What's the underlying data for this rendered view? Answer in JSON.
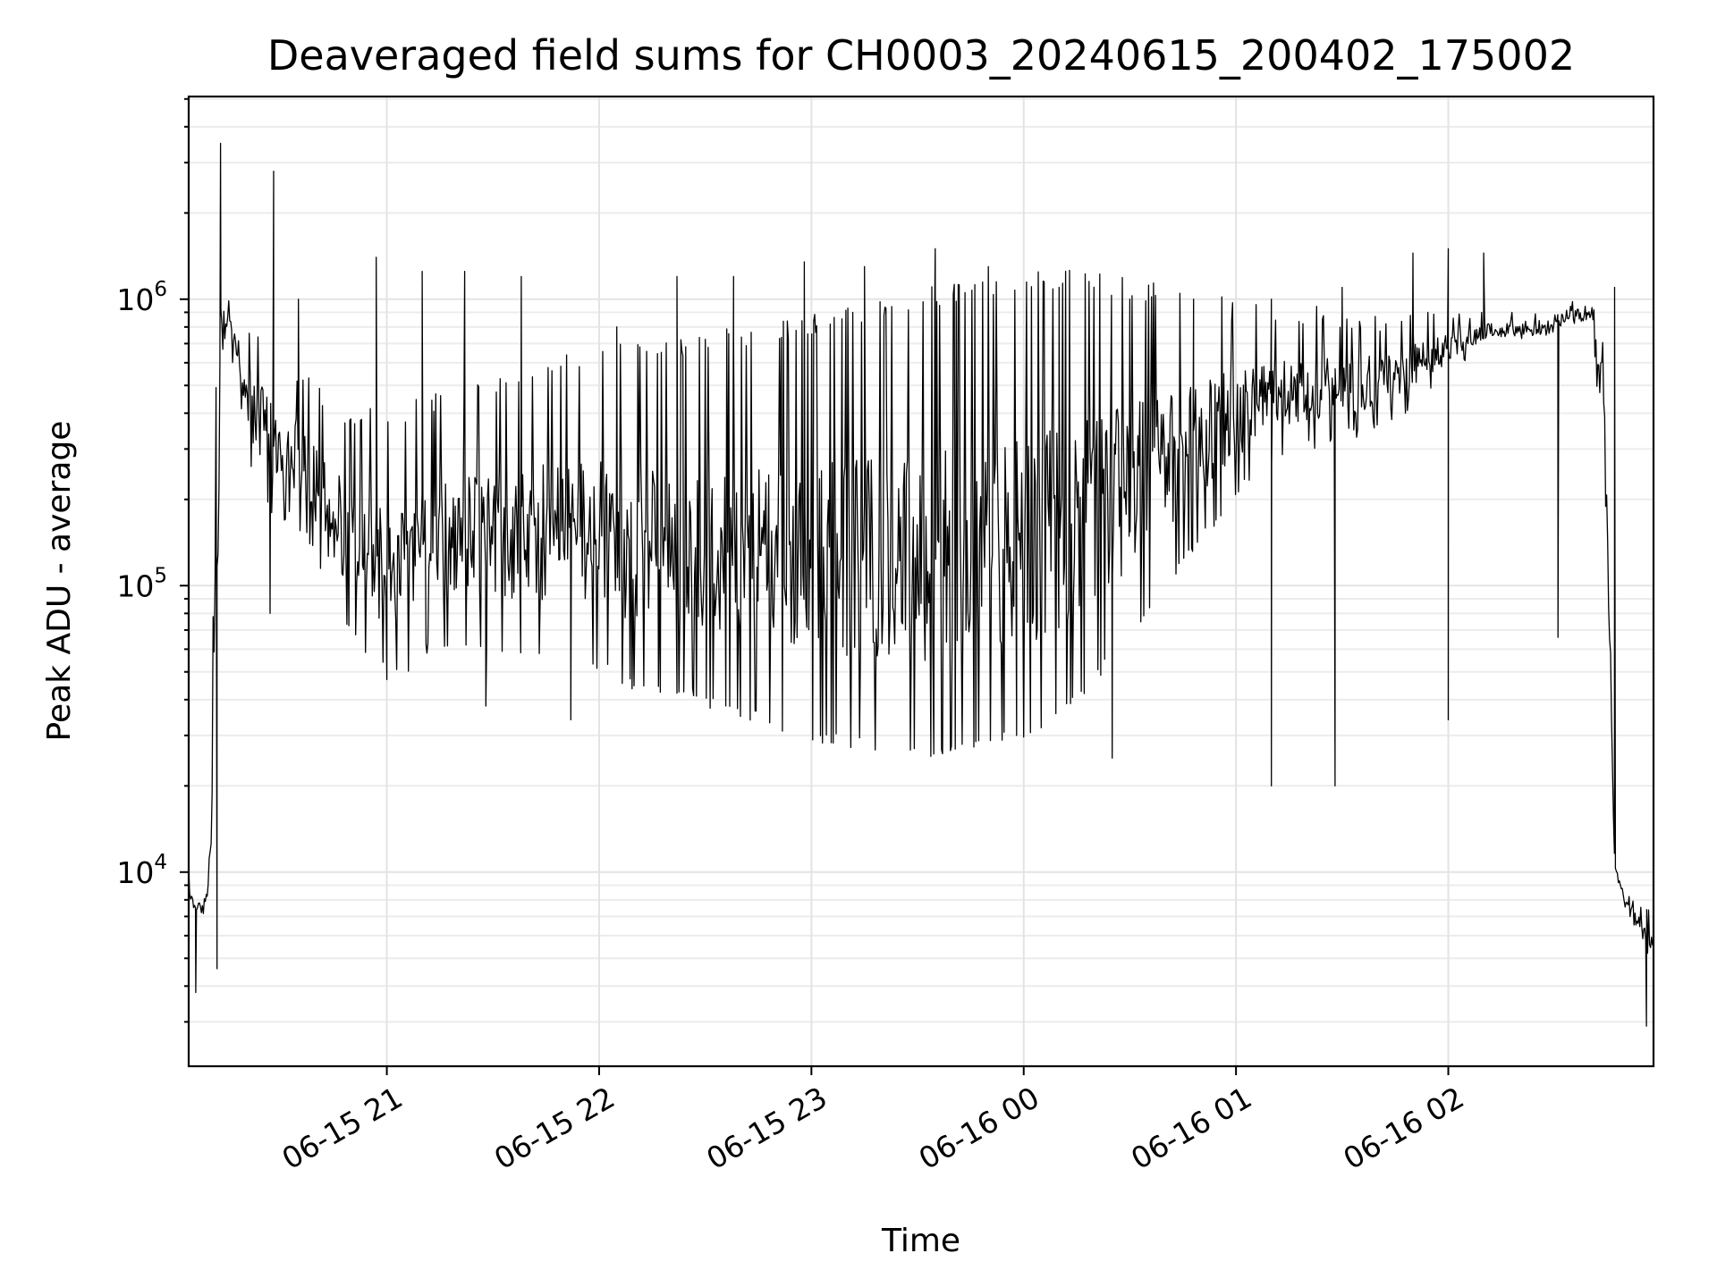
{
  "chart_data": {
    "type": "line",
    "title": "Deaveraged field sums for CH0003_20240615_200402_175002",
    "xlabel": "Time",
    "ylabel": "Peak ADU - average",
    "xscale": "time",
    "yscale": "log",
    "xlim": [
      "2024-06-15 20:04",
      "2024-06-16 02:58"
    ],
    "ylim": [
      2100,
      5100000
    ],
    "x_ticks": [
      "2024-06-15 21:00",
      "2024-06-15 22:00",
      "2024-06-15 23:00",
      "2024-06-16 00:00",
      "2024-06-16 01:00",
      "2024-06-16 02:00"
    ],
    "x_tick_labels": [
      "06-15 21",
      "06-15 22",
      "06-15 23",
      "06-16 00",
      "06-16 01",
      "06-16 02"
    ],
    "y_ticks": [
      10000,
      100000,
      1000000
    ],
    "y_tick_labels": [
      {
        "base": "10",
        "exp": "4"
      },
      {
        "base": "10",
        "exp": "5"
      },
      {
        "base": "10",
        "exp": "6"
      }
    ],
    "grid": true,
    "legend": "none",
    "series": [
      {
        "color": "#000000",
        "x": [
          "2024-06-15 20:04",
          "2024-06-15 20:05",
          "2024-06-15 20:08",
          "2024-06-15 20:10",
          "2024-06-15 20:12",
          "2024-06-15 20:13",
          "2024-06-15 20:14",
          "2024-06-15 20:16",
          "2024-06-15 20:17",
          "2024-06-15 20:19",
          "2024-06-15 20:20",
          "2024-06-15 20:23",
          "2024-06-15 20:25",
          "2024-06-15 20:27",
          "2024-06-15 20:30",
          "2024-06-15 20:33",
          "2024-06-15 20:36",
          "2024-06-15 20:38",
          "2024-06-15 20:40",
          "2024-06-15 20:43",
          "2024-06-15 20:46",
          "2024-06-15 20:49",
          "2024-06-15 20:52",
          "2024-06-15 20:55",
          "2024-06-15 20:58",
          "2024-06-15 21:02",
          "2024-06-15 21:06",
          "2024-06-15 21:10",
          "2024-06-15 21:14",
          "2024-06-15 21:18",
          "2024-06-15 21:22",
          "2024-06-15 21:26",
          "2024-06-15 21:30",
          "2024-06-15 21:35",
          "2024-06-15 21:40",
          "2024-06-15 21:45",
          "2024-06-15 21:50",
          "2024-06-15 21:55",
          "2024-06-15 22:00",
          "2024-06-15 22:06",
          "2024-06-15 22:12",
          "2024-06-15 22:18",
          "2024-06-15 22:24",
          "2024-06-15 22:30",
          "2024-06-15 22:36",
          "2024-06-15 22:42",
          "2024-06-15 22:48",
          "2024-06-15 22:54",
          "2024-06-15 23:00",
          "2024-06-15 23:08",
          "2024-06-15 23:16",
          "2024-06-15 23:24",
          "2024-06-15 23:32",
          "2024-06-15 23:40",
          "2024-06-15 23:48",
          "2024-06-15 23:56",
          "2024-06-16 00:04",
          "2024-06-16 00:12",
          "2024-06-16 00:20",
          "2024-06-16 00:28",
          "2024-06-16 00:36",
          "2024-06-16 00:44",
          "2024-06-16 00:52",
          "2024-06-16 01:00",
          "2024-06-16 01:08",
          "2024-06-16 01:16",
          "2024-06-16 01:24",
          "2024-06-16 01:32",
          "2024-06-16 01:40",
          "2024-06-16 01:48",
          "2024-06-16 01:56",
          "2024-06-16 02:04",
          "2024-06-16 02:12",
          "2024-06-16 02:20",
          "2024-06-16 02:28",
          "2024-06-16 02:34",
          "2024-06-16 02:40",
          "2024-06-16 02:44",
          "2024-06-16 02:47",
          "2024-06-16 02:50",
          "2024-06-16 02:53",
          "2024-06-16 02:56",
          "2024-06-16 02:58"
        ],
        "low": [
          8000,
          7000,
          7000,
          8000,
          20000,
          600000,
          650000,
          600000,
          550000,
          400000,
          250000,
          220000,
          200000,
          180000,
          170000,
          160000,
          150000,
          140000,
          120000,
          90000,
          80000,
          70000,
          60000,
          55000,
          50000,
          50000,
          50000,
          55000,
          60000,
          60000,
          60000,
          60000,
          55000,
          55000,
          55000,
          55000,
          55000,
          55000,
          50000,
          45000,
          40000,
          40000,
          40000,
          38000,
          35000,
          33000,
          32000,
          30000,
          28000,
          27000,
          26000,
          25000,
          25000,
          25000,
          26000,
          28000,
          30000,
          35000,
          45000,
          60000,
          80000,
          110000,
          150000,
          200000,
          250000,
          280000,
          300000,
          320000,
          350000,
          400000,
          500000,
          600000,
          700000,
          700000,
          700000,
          800000,
          800000,
          300000,
          10000,
          7000,
          6000,
          5000,
          5000
        ],
        "high": [
          13000,
          9000,
          8000,
          12000,
          1000000,
          1200000,
          1200000,
          1000000,
          950000,
          900000,
          900000,
          850000,
          800000,
          750000,
          700000,
          650000,
          600000,
          560000,
          520000,
          480000,
          450000,
          430000,
          420000,
          420000,
          420000,
          420000,
          440000,
          460000,
          480000,
          500000,
          520000,
          540000,
          560000,
          580000,
          600000,
          620000,
          640000,
          660000,
          680000,
          700000,
          720000,
          740000,
          760000,
          780000,
          800000,
          820000,
          840000,
          860000,
          900000,
          950000,
          1000000,
          1050000,
          1100000,
          1150000,
          1200000,
          1250000,
          1300000,
          1300000,
          1250000,
          1200000,
          1150000,
          1100000,
          1050000,
          1000000,
          1000000,
          950000,
          950000,
          900000,
          900000,
          900000,
          900000,
          900000,
          900000,
          900000,
          950000,
          1000000,
          1000000,
          800000,
          12000,
          9000,
          8000,
          8000,
          8000
        ],
        "spikes": [
          {
            "x": "2024-06-15 20:13",
            "y": 3500000
          },
          {
            "x": "2024-06-15 20:28",
            "y": 2800000
          },
          {
            "x": "2024-06-15 20:35",
            "y": 1000000
          },
          {
            "x": "2024-06-15 20:57",
            "y": 1400000
          },
          {
            "x": "2024-06-15 21:10",
            "y": 1250000
          },
          {
            "x": "2024-06-15 21:22",
            "y": 1250000
          },
          {
            "x": "2024-06-15 21:38",
            "y": 1200000
          },
          {
            "x": "2024-06-15 22:05",
            "y": 800000
          },
          {
            "x": "2024-06-15 22:22",
            "y": 1200000
          },
          {
            "x": "2024-06-15 22:38",
            "y": 1200000
          },
          {
            "x": "2024-06-15 22:58",
            "y": 1350000
          },
          {
            "x": "2024-06-15 23:15",
            "y": 1300000
          },
          {
            "x": "2024-06-15 23:35",
            "y": 1500000
          },
          {
            "x": "2024-06-15 23:50",
            "y": 1300000
          },
          {
            "x": "2024-06-16 00:10",
            "y": 1100000
          },
          {
            "x": "2024-06-16 00:30",
            "y": 1000000
          },
          {
            "x": "2024-06-16 00:48",
            "y": 1000000
          },
          {
            "x": "2024-06-16 01:10",
            "y": 1000000
          },
          {
            "x": "2024-06-16 01:30",
            "y": 1100000
          },
          {
            "x": "2024-06-16 01:50",
            "y": 1450000
          },
          {
            "x": "2024-06-16 02:00",
            "y": 1500000
          },
          {
            "x": "2024-06-16 02:10",
            "y": 1450000
          },
          {
            "x": "2024-06-16 02:47",
            "y": 1100000
          }
        ],
        "dips": [
          {
            "x": "2024-06-15 20:06",
            "y": 3800
          },
          {
            "x": "2024-06-15 20:12",
            "y": 4600
          },
          {
            "x": "2024-06-15 20:27",
            "y": 80000
          },
          {
            "x": "2024-06-15 21:00",
            "y": 47000
          },
          {
            "x": "2024-06-15 21:28",
            "y": 38000
          },
          {
            "x": "2024-06-15 21:52",
            "y": 34000
          },
          {
            "x": "2024-06-15 23:58",
            "y": 30000
          },
          {
            "x": "2024-06-16 00:25",
            "y": 25000
          },
          {
            "x": "2024-06-16 01:10",
            "y": 20000
          },
          {
            "x": "2024-06-16 01:28",
            "y": 20000
          },
          {
            "x": "2024-06-16 02:00",
            "y": 34000
          },
          {
            "x": "2024-06-16 02:31",
            "y": 66000
          },
          {
            "x": "2024-06-16 02:56",
            "y": 2900
          }
        ]
      }
    ]
  }
}
